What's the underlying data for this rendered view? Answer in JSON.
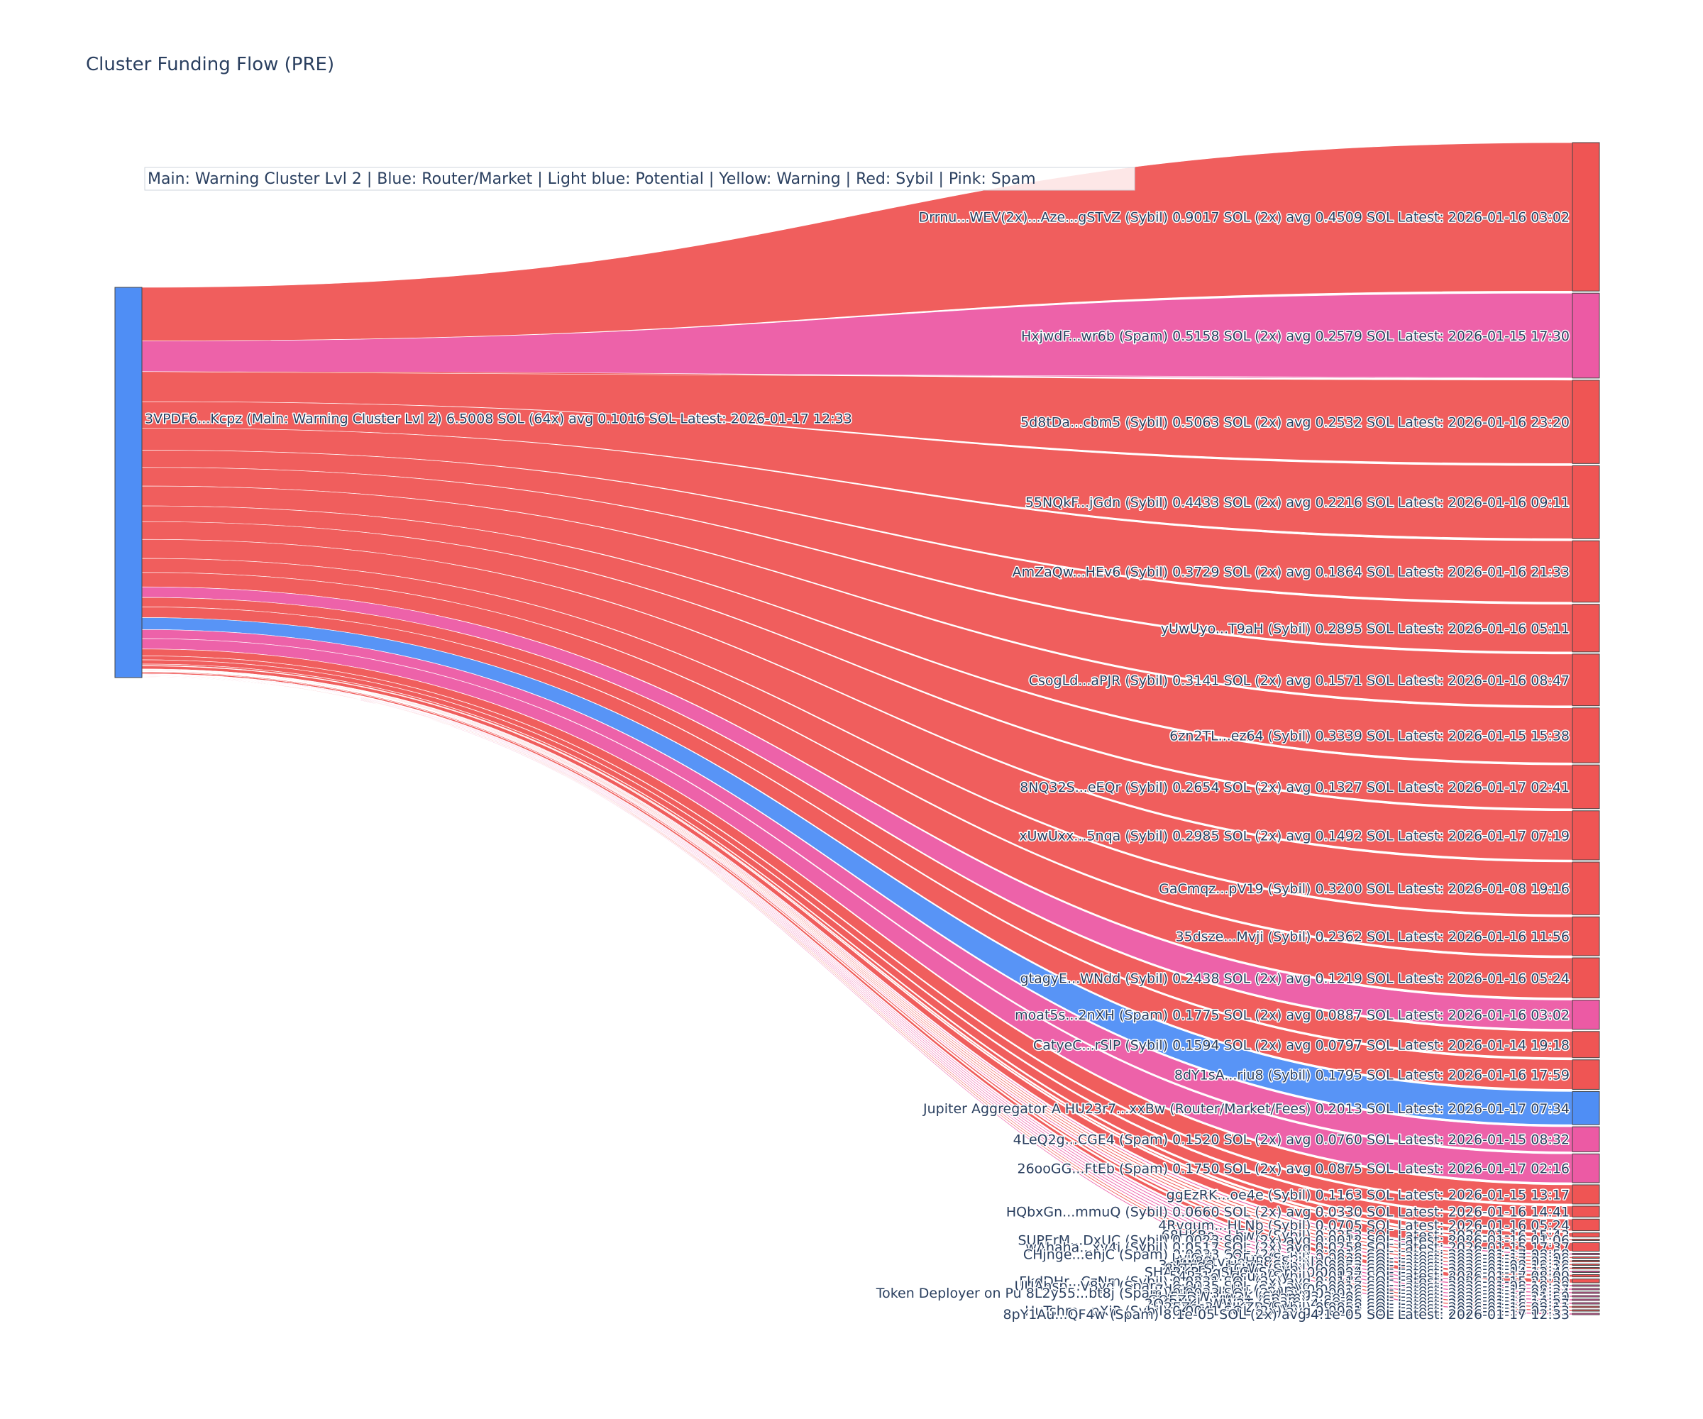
{
  "chart_data": {
    "type": "sankey",
    "title": "Cluster Funding Flow (PRE)",
    "legend_note": "Main: Warning Cluster Lvl 2  |  Blue: Router/Market | Light blue: Potential | Yellow: Warning | Red: Sybil | Pink: Spam",
    "colors": {
      "source": "#4f8ef5",
      "router": "#4f8ef5",
      "sybil": "#ef5554",
      "spam": "#ec5aa4",
      "node_border": "#444444"
    },
    "source": {
      "label": "3VPDF6...Kcpz (Main: Warning Cluster Lvl 2) 6.5008 SOL (64x) avg 0.1016 SOL Latest: 2026-01-17 12:33",
      "category": "source"
    },
    "targets": [
      {
        "label": "Drrnu...WEV(2x)...Aze...gSTvZ (Sybil) 0.9017 SOL (2x) avg 0.4509 SOL Latest: 2026-01-16 03:02",
        "category": "sybil",
        "value": 0.9017
      },
      {
        "label": "HxjwdF...wr6b (Spam) 0.5158 SOL (2x) avg 0.2579 SOL Latest: 2026-01-15 17:30",
        "category": "spam",
        "value": 0.5158
      },
      {
        "label": "5d8tDa...cbm5 (Sybil) 0.5063 SOL (2x) avg 0.2532 SOL Latest: 2026-01-16 23:20",
        "category": "sybil",
        "value": 0.5063
      },
      {
        "label": "55NQkF...jGdn (Sybil) 0.4433 SOL (2x) avg 0.2216 SOL Latest: 2026-01-16 09:11",
        "category": "sybil",
        "value": 0.4433
      },
      {
        "label": "AmZaQw...HEv6 (Sybil) 0.3729 SOL (2x) avg 0.1864 SOL Latest: 2026-01-16 21:33",
        "category": "sybil",
        "value": 0.3729
      },
      {
        "label": "yUwUyo...T9aH (Sybil) 0.2895 SOL Latest: 2026-01-16 05:11",
        "category": "sybil",
        "value": 0.2895
      },
      {
        "label": "CsogLd...aPJR (Sybil) 0.3141 SOL (2x) avg 0.1571 SOL Latest: 2026-01-16 08:47",
        "category": "sybil",
        "value": 0.3141
      },
      {
        "label": "6zn2TL...ez64 (Sybil) 0.3339 SOL Latest: 2026-01-15 15:38",
        "category": "sybil",
        "value": 0.3339
      },
      {
        "label": "8NQ32S...eEQr (Sybil) 0.2654 SOL (2x) avg 0.1327 SOL Latest: 2026-01-17 02:41",
        "category": "sybil",
        "value": 0.2654
      },
      {
        "label": "xUwUxx...5nqa (Sybil) 0.2985 SOL (2x) avg 0.1492 SOL Latest: 2026-01-17 07:19",
        "category": "sybil",
        "value": 0.2985
      },
      {
        "label": "GaCmqz...pV19 (Sybil) 0.3200 SOL Latest: 2026-01-08 19:16",
        "category": "sybil",
        "value": 0.32
      },
      {
        "label": "35dsze...Mvji (Sybil) 0.2362 SOL Latest: 2026-01-16 11:56",
        "category": "sybil",
        "value": 0.2362
      },
      {
        "label": "gtagyE...WNdd (Sybil) 0.2438 SOL (2x) avg 0.1219 SOL Latest: 2026-01-16 05:24",
        "category": "sybil",
        "value": 0.2438
      },
      {
        "label": "moat5s...2nXH (Spam) 0.1775 SOL (2x) avg 0.0887 SOL Latest: 2026-01-16 03:02",
        "category": "spam",
        "value": 0.1775
      },
      {
        "label": "CatyeC...rSlP (Sybil) 0.1594 SOL (2x) avg 0.0797 SOL Latest: 2026-01-14 19:18",
        "category": "sybil",
        "value": 0.1594
      },
      {
        "label": "8dY1sA...riu8 (Sybil) 0.1795 SOL Latest: 2026-01-16 17:59",
        "category": "sybil",
        "value": 0.1795
      },
      {
        "label": "Jupiter Aggregator A HU23r7...xxBw (Router/Market/Fees) 0.2013 SOL Latest: 2026-01-17 07:34",
        "category": "router",
        "value": 0.2013
      },
      {
        "label": "4LeQ2g...CGE4 (Spam) 0.1520 SOL (2x) avg 0.0760 SOL Latest: 2026-01-15 08:32",
        "category": "spam",
        "value": 0.152
      },
      {
        "label": "26ooGG...FtEb (Spam) 0.1750 SOL (2x) avg 0.0875 SOL Latest: 2026-01-17 02:16",
        "category": "spam",
        "value": 0.175
      },
      {
        "label": "ggEzRK...oe4e (Sybil) 0.1163 SOL Latest: 2026-01-15 13:17",
        "category": "sybil",
        "value": 0.1163
      },
      {
        "label": "HQbxGn...mmuQ (Sybil) 0.0660 SOL (2x) avg 0.0330 SOL Latest: 2026-01-16 14:41",
        "category": "sybil",
        "value": 0.066
      },
      {
        "label": "4Rvgum...HLNb (Sybil) 0.0705 SOL Latest: 2026-01-16 05:24",
        "category": "sybil",
        "value": 0.0705
      },
      {
        "label": "68HKBo...LbwK (Sybil) 0.0252 SOL Latest: 2026-01-16 15:43",
        "category": "sybil",
        "value": 0.0252
      },
      {
        "label": "SUPErM...DxUC (Sybil) 0.0023 SOL (2x) avg 0.0012 SOL Latest: 2026-01-16 01:06",
        "category": "sybil",
        "value": 0.0023
      },
      {
        "label": "wAhaha...xy4i (Sybil) 0.0517 SOL (2x) avg 0.0258 SOL Latest: 2026-01-15 17:37",
        "category": "sybil",
        "value": 0.0517
      },
      {
        "label": "CHjnge...ehjC (Spam) 0.0033 SOL (2x) avg 0.0016 SOL Latest: 2026-01-17 08:58",
        "category": "spam",
        "value": 0.0033
      },
      {
        "label": "LvjCui...22Fm (Sybil) 0.0038 SOL Latest: 2026-01-17 12:08",
        "category": "sybil",
        "value": 0.0038
      },
      {
        "label": "sy88tv...oHP8 (Sybil) 0.008 SOL Latest: 2026-01-17 02:16",
        "category": "sybil",
        "value": 0.008
      },
      {
        "label": "3nMNd8...HyyH (Sybil) 0.0072 SOL Latest: 2026-01-08 19:38",
        "category": "sybil",
        "value": 0.0072
      },
      {
        "label": "8YTErS...h6WP (Sybil) 0.0057 SOL Latest: 2026-01-03 15:16",
        "category": "sybil",
        "value": 0.0057
      },
      {
        "label": "SHARKR...gSHC (Spam) 0.00094 SOL Latest: 2026-01-14 12:46",
        "category": "spam",
        "value": 0.00094
      },
      {
        "label": "54Pz1e...dsuy (Sybil) 0.0137 SOL Latest: 2026-01-17 08:09",
        "category": "sybil",
        "value": 0.0137
      },
      {
        "label": "FkdDHr...CzNm (Sybil) 0.0231 SOL (2x) avg 0.0116 SOL Latest: 2026-01-15 22:20",
        "category": "sybil",
        "value": 0.0231
      },
      {
        "label": "UUAhsp...V8yd (Spam) 0.0035 SOL (2x) avg 0.0017 SOL Latest: 2026-01-08 19:39",
        "category": "spam",
        "value": 0.0035
      },
      {
        "label": "7dGrdJ...uuUu (Spam) 0.00029 SOL Latest: 2026-01-15 08:27",
        "category": "spam",
        "value": 0.00029
      },
      {
        "label": "Token Deployer on Pu 8L2y55...bt8j (Spam) 0.0033 SOL (2x) avg 0.0016 SOL Latest: 2026-01-17 04:34",
        "category": "spam",
        "value": 0.0033
      },
      {
        "label": "HvFdDW...jqDK (Spam) 3.3e-06 SOL Latest: 2026-01-15 21:59",
        "category": "spam",
        "value": 3.3e-06
      },
      {
        "label": "GQEZDi...VWyA (Spam) 3.8e-06 SOL Latest: 2026-01-16 14:51",
        "category": "spam",
        "value": 3.8e-06
      },
      {
        "label": "2QfBNK...WW2T (Spam) 4.6e-08 SOL Latest: 2026-01-15 13:27",
        "category": "spam",
        "value": 4.6e-08
      },
      {
        "label": "2EZsc3...NKZB (Sybil) 0.0058 SOL Latest: 2026-01-16 09:11",
        "category": "sybil",
        "value": 0.0058
      },
      {
        "label": "HuTshm...pXiP (Sybil) 0.0041 SOL (2x) avg 0.0021 SOL Latest: 2026-01-16 07:53",
        "category": "sybil",
        "value": 0.0041
      },
      {
        "label": "8pY1Au...QF4w (Spam) 8.1e-05 SOL (2x) avg 4.1e-05 SOL Latest: 2026-01-17 12:33",
        "category": "spam",
        "value": 8.1e-05
      }
    ]
  }
}
